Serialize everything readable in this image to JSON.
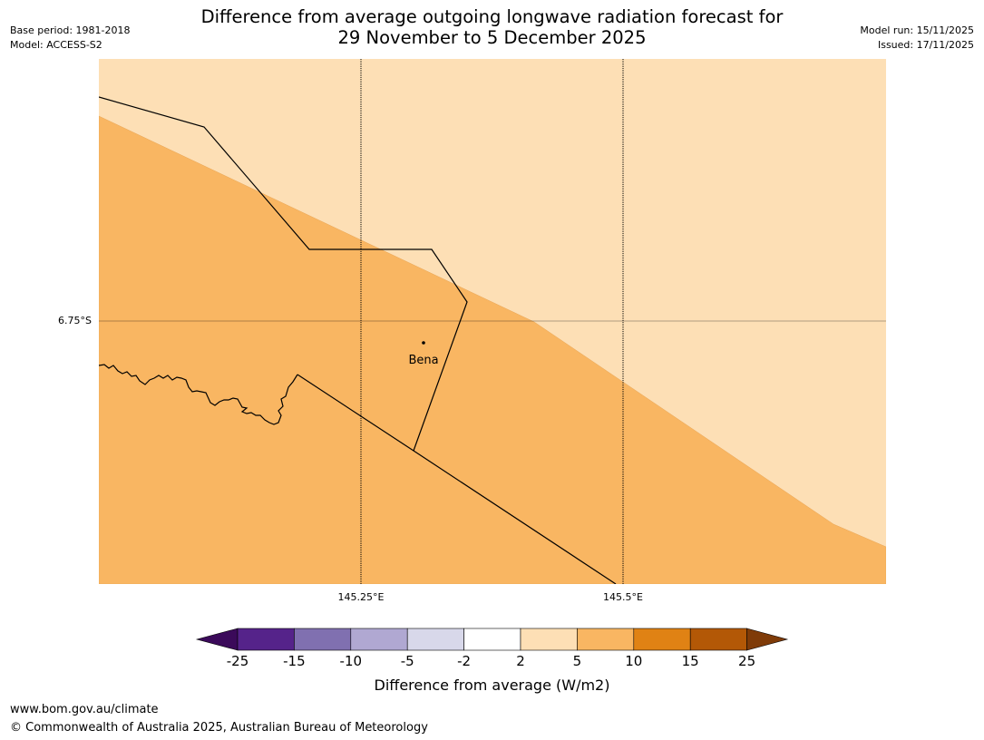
{
  "title_line1": "Difference from average outgoing longwave radiation forecast for",
  "title_line2": "29 November to 5 December 2025",
  "base_period": "Base period: 1981-2018",
  "model": "Model: ACCESS-S2",
  "model_run": "Model run: 15/11/2025",
  "issued": "Issued: 17/11/2025",
  "map": {
    "lat_label": "6.75°S",
    "lon_labels": [
      "145.25°E",
      "145.5°E"
    ],
    "place_name": "Bena",
    "colors": {
      "light_band": "#fddfb5",
      "mid_band": "#f9b662"
    }
  },
  "colorbar": {
    "tick_labels": [
      "-25",
      "-15",
      "-10",
      "-5",
      "-2",
      "2",
      "5",
      "10",
      "15",
      "25"
    ],
    "colors": [
      "#3b0a5a",
      "#55238a",
      "#8070b0",
      "#b0a8d2",
      "#d8d8ea",
      "#ffffff",
      "#fddfb5",
      "#f9b662",
      "#e08214",
      "#b35806",
      "#7f3b08"
    ],
    "label": "Difference from average (W/m2)"
  },
  "footer": {
    "url": "www.bom.gov.au/climate",
    "copyright": "© Commonwealth of Australia 2025, Australian Bureau of Meteorology"
  }
}
